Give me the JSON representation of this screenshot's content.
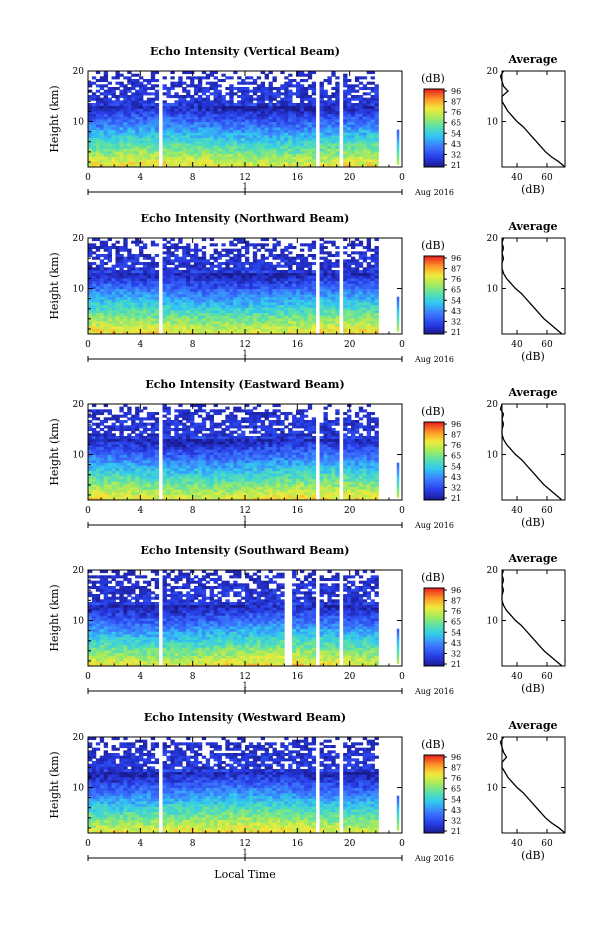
{
  "figure": {
    "xlabel": "Local Time",
    "date_label": "Aug 2016",
    "day_label": "1",
    "colorbar_unit": "(dB)",
    "colorbar_ticks": [
      "96",
      "87",
      "76",
      "65",
      "54",
      "43",
      "32",
      "21"
    ],
    "colors": {
      "dark_blue": "#1a1a8c",
      "blue": "#3355ff",
      "cyan": "#33ccee",
      "green": "#66dd88",
      "yellow": "#eeee44",
      "orange": "#ff9922",
      "red": "#ee2222"
    }
  },
  "chart_data": [
    {
      "type": "heatmap",
      "title": "Echo Intensity (Vertical Beam)",
      "ylabel": "Height (km)",
      "x_ticks": [
        "0",
        "4",
        "8",
        "12",
        "16",
        "20",
        "0"
      ],
      "y_ticks": [
        "20",
        "10"
      ],
      "xlim": [
        0,
        24
      ],
      "ylim": [
        1,
        20
      ],
      "zlim": [
        21,
        96
      ],
      "gaps_hours": [
        5.5,
        17.5,
        19.3
      ],
      "average_profile": {
        "title": "Average",
        "xlabel": "(dB)",
        "x_ticks": [
          "40",
          "60"
        ],
        "y_ticks": [
          "20",
          "10"
        ],
        "height_km": [
          1,
          2,
          3,
          4,
          5,
          6,
          7,
          8,
          9,
          10,
          11,
          12,
          13,
          14,
          15,
          16,
          17,
          18,
          19,
          20
        ],
        "values_db": [
          72,
          68,
          63,
          59,
          56,
          53,
          50,
          47,
          44,
          40,
          37,
          34,
          32,
          30,
          30,
          34,
          31,
          30,
          29,
          31
        ]
      }
    },
    {
      "type": "heatmap",
      "title": "Echo Intensity (Northward Beam)",
      "ylabel": "Height (km)",
      "x_ticks": [
        "0",
        "4",
        "8",
        "12",
        "16",
        "20",
        "0"
      ],
      "y_ticks": [
        "20",
        "10"
      ],
      "xlim": [
        0,
        24
      ],
      "ylim": [
        1,
        20
      ],
      "zlim": [
        21,
        96
      ],
      "gaps_hours": [
        5.5,
        17.5,
        19.3
      ],
      "average_profile": {
        "title": "Average",
        "xlabel": "(dB)",
        "x_ticks": [
          "40",
          "60"
        ],
        "y_ticks": [
          "20",
          "10"
        ],
        "height_km": [
          1,
          2,
          3,
          4,
          5,
          6,
          7,
          8,
          9,
          10,
          11,
          12,
          13,
          14,
          15,
          16,
          17,
          18,
          19,
          20
        ],
        "values_db": [
          70,
          66,
          62,
          58,
          55,
          52,
          49,
          46,
          43,
          39,
          36,
          33,
          31,
          30,
          30,
          31,
          30,
          31,
          30,
          31
        ]
      }
    },
    {
      "type": "heatmap",
      "title": "Echo Intensity (Eastward Beam)",
      "ylabel": "Height (km)",
      "x_ticks": [
        "0",
        "4",
        "8",
        "12",
        "16",
        "20",
        "0"
      ],
      "y_ticks": [
        "20",
        "10"
      ],
      "xlim": [
        0,
        24
      ],
      "ylim": [
        1,
        20
      ],
      "zlim": [
        21,
        96
      ],
      "gaps_hours": [
        5.5,
        17.5,
        19.3
      ],
      "average_profile": {
        "title": "Average",
        "xlabel": "(dB)",
        "x_ticks": [
          "40",
          "60"
        ],
        "y_ticks": [
          "20",
          "10"
        ],
        "height_km": [
          1,
          2,
          3,
          4,
          5,
          6,
          7,
          8,
          9,
          10,
          11,
          12,
          13,
          14,
          15,
          16,
          17,
          18,
          19,
          20
        ],
        "values_db": [
          70,
          66,
          62,
          58,
          55,
          52,
          49,
          46,
          43,
          39,
          36,
          33,
          31,
          30,
          30,
          31,
          30,
          31,
          29,
          30
        ]
      }
    },
    {
      "type": "heatmap",
      "title": "Echo Intensity (Southward Beam)",
      "ylabel": "Height (km)",
      "x_ticks": [
        "0",
        "4",
        "8",
        "12",
        "16",
        "20",
        "0"
      ],
      "y_ticks": [
        "20",
        "10"
      ],
      "xlim": [
        0,
        24
      ],
      "ylim": [
        1,
        20
      ],
      "zlim": [
        21,
        96
      ],
      "gaps_hours": [
        5.5,
        15.3,
        17.5,
        19.3
      ],
      "average_profile": {
        "title": "Average",
        "xlabel": "(dB)",
        "x_ticks": [
          "40",
          "60"
        ],
        "y_ticks": [
          "20",
          "10"
        ],
        "height_km": [
          1,
          2,
          3,
          4,
          5,
          6,
          7,
          8,
          9,
          10,
          11,
          12,
          13,
          14,
          15,
          16,
          17,
          18,
          19,
          20
        ],
        "values_db": [
          70,
          66,
          62,
          58,
          55,
          52,
          49,
          46,
          43,
          39,
          36,
          33,
          31,
          30,
          30,
          31,
          30,
          31,
          30,
          31
        ]
      }
    },
    {
      "type": "heatmap",
      "title": "Echo Intensity (Westward Beam)",
      "ylabel": "Height (km)",
      "x_ticks": [
        "0",
        "4",
        "8",
        "12",
        "16",
        "20",
        "0"
      ],
      "y_ticks": [
        "20",
        "10"
      ],
      "xlim": [
        0,
        24
      ],
      "ylim": [
        1,
        20
      ],
      "zlim": [
        21,
        96
      ],
      "gaps_hours": [
        5.5,
        17.5,
        19.3
      ],
      "average_profile": {
        "title": "Average",
        "xlabel": "(dB)",
        "x_ticks": [
          "40",
          "60"
        ],
        "y_ticks": [
          "20",
          "10"
        ],
        "height_km": [
          1,
          2,
          3,
          4,
          5,
          6,
          7,
          8,
          9,
          10,
          11,
          12,
          13,
          14,
          15,
          16,
          17,
          18,
          19,
          20
        ],
        "values_db": [
          72,
          68,
          63,
          59,
          56,
          53,
          50,
          47,
          44,
          40,
          37,
          34,
          32,
          30,
          30,
          33,
          31,
          30,
          29,
          31
        ]
      }
    }
  ]
}
